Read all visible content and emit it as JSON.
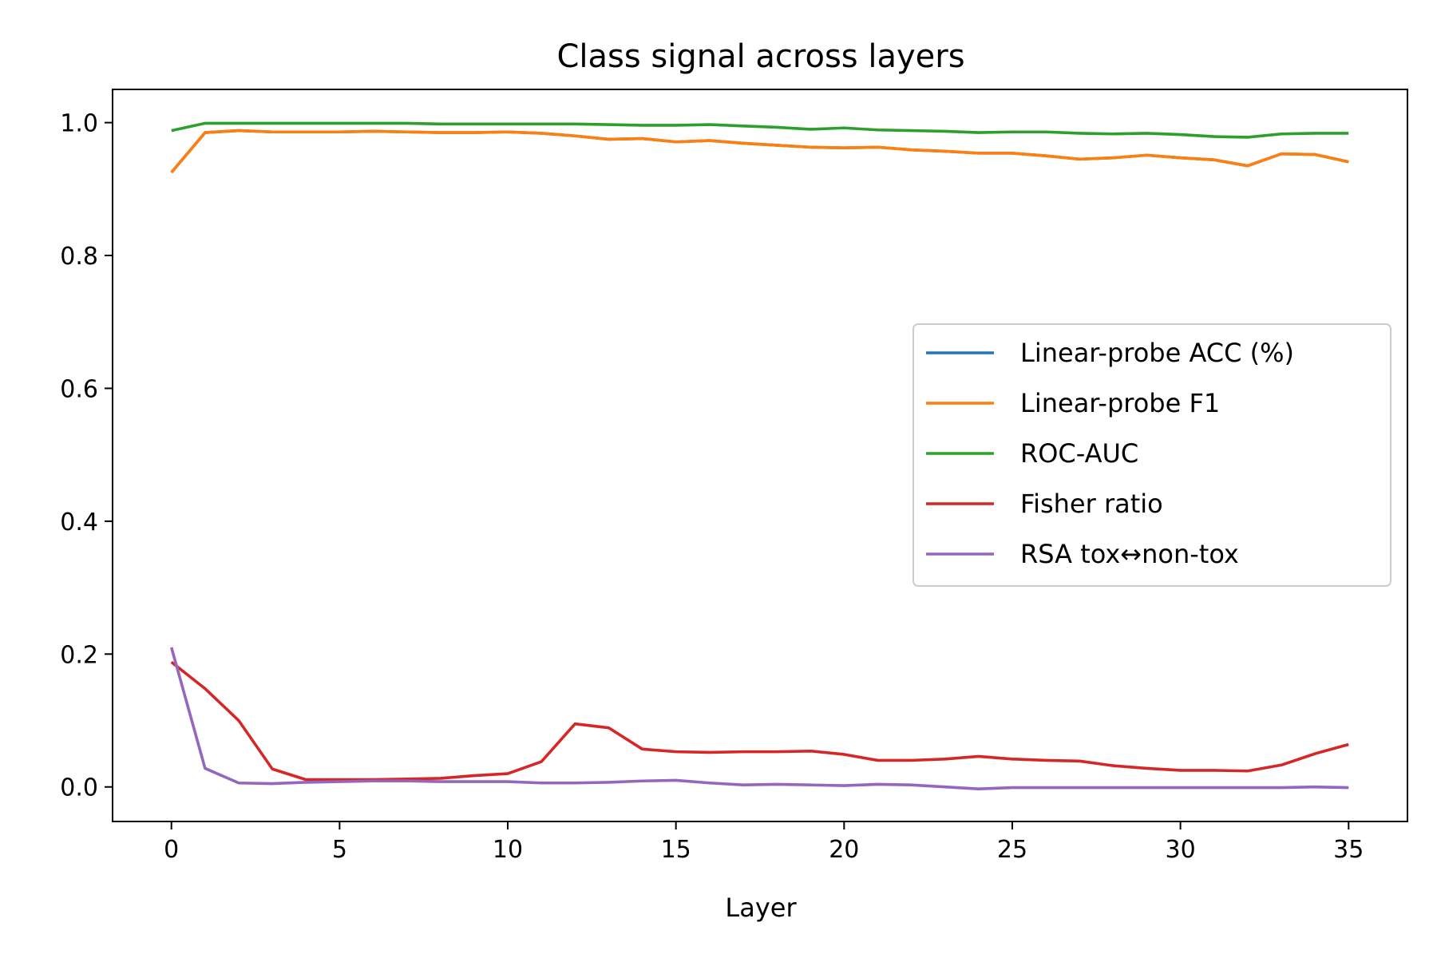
{
  "chart_data": {
    "type": "line",
    "title": "Class signal across layers",
    "xlabel": "Layer",
    "ylabel": "",
    "xlim": [
      -1.75,
      36.75
    ],
    "ylim": [
      -0.052,
      1.05
    ],
    "xticks": [
      0,
      5,
      10,
      15,
      20,
      25,
      30,
      35
    ],
    "yticks": [
      0.0,
      0.2,
      0.4,
      0.6,
      0.8,
      1.0
    ],
    "xtick_labels": [
      "0",
      "5",
      "10",
      "15",
      "20",
      "25",
      "30",
      "35"
    ],
    "ytick_labels": [
      "0.0",
      "0.2",
      "0.4",
      "0.6",
      "0.8",
      "1.0"
    ],
    "grid": false,
    "legend_position": "center-right",
    "x": [
      0,
      1,
      2,
      3,
      4,
      5,
      6,
      7,
      8,
      9,
      10,
      11,
      12,
      13,
      14,
      15,
      16,
      17,
      18,
      19,
      20,
      21,
      22,
      23,
      24,
      25,
      26,
      27,
      28,
      29,
      30,
      31,
      32,
      33,
      34,
      35
    ],
    "series": [
      {
        "name": "Linear-probe ACC (%)",
        "color": "#1f77b4",
        "values": [
          0.925,
          0.985,
          0.988,
          0.986,
          0.986,
          0.986,
          0.987,
          0.986,
          0.985,
          0.985,
          0.986,
          0.984,
          0.98,
          0.975,
          0.976,
          0.971,
          0.973,
          0.969,
          0.966,
          0.963,
          0.962,
          0.963,
          0.959,
          0.957,
          0.954,
          0.954,
          0.95,
          0.945,
          0.947,
          0.951,
          0.947,
          0.944,
          0.935,
          0.953,
          0.952,
          0.941
        ]
      },
      {
        "name": "Linear-probe F1",
        "color": "#ff7f0e",
        "values": [
          0.925,
          0.985,
          0.988,
          0.986,
          0.986,
          0.986,
          0.987,
          0.986,
          0.985,
          0.985,
          0.986,
          0.984,
          0.98,
          0.975,
          0.976,
          0.971,
          0.973,
          0.969,
          0.966,
          0.963,
          0.962,
          0.963,
          0.959,
          0.957,
          0.954,
          0.954,
          0.95,
          0.945,
          0.947,
          0.951,
          0.947,
          0.944,
          0.935,
          0.953,
          0.952,
          0.941
        ]
      },
      {
        "name": "ROC-AUC",
        "color": "#2ca02c",
        "values": [
          0.988,
          0.999,
          0.999,
          0.999,
          0.999,
          0.999,
          0.999,
          0.999,
          0.998,
          0.998,
          0.998,
          0.998,
          0.998,
          0.997,
          0.996,
          0.996,
          0.997,
          0.995,
          0.993,
          0.99,
          0.992,
          0.989,
          0.988,
          0.987,
          0.985,
          0.986,
          0.986,
          0.984,
          0.983,
          0.984,
          0.982,
          0.979,
          0.978,
          0.983,
          0.984,
          0.984
        ]
      },
      {
        "name": "Fisher ratio",
        "color": "#d62728",
        "values": [
          0.188,
          0.148,
          0.1,
          0.027,
          0.011,
          0.011,
          0.011,
          0.012,
          0.013,
          0.017,
          0.02,
          0.038,
          0.095,
          0.089,
          0.057,
          0.053,
          0.052,
          0.053,
          0.053,
          0.054,
          0.049,
          0.04,
          0.04,
          0.042,
          0.046,
          0.042,
          0.04,
          0.039,
          0.032,
          0.028,
          0.025,
          0.025,
          0.024,
          0.033,
          0.05,
          0.064
        ]
      },
      {
        "name": "RSA tox↔non-tox",
        "color": "#9467bd",
        "values": [
          0.21,
          0.028,
          0.006,
          0.005,
          0.007,
          0.008,
          0.009,
          0.009,
          0.008,
          0.008,
          0.008,
          0.006,
          0.006,
          0.007,
          0.009,
          0.01,
          0.006,
          0.003,
          0.004,
          0.003,
          0.002,
          0.004,
          0.003,
          0.0,
          -0.003,
          -0.001,
          -0.001,
          -0.001,
          -0.001,
          -0.001,
          -0.001,
          -0.001,
          -0.001,
          -0.001,
          0.0,
          -0.001
        ]
      }
    ]
  }
}
